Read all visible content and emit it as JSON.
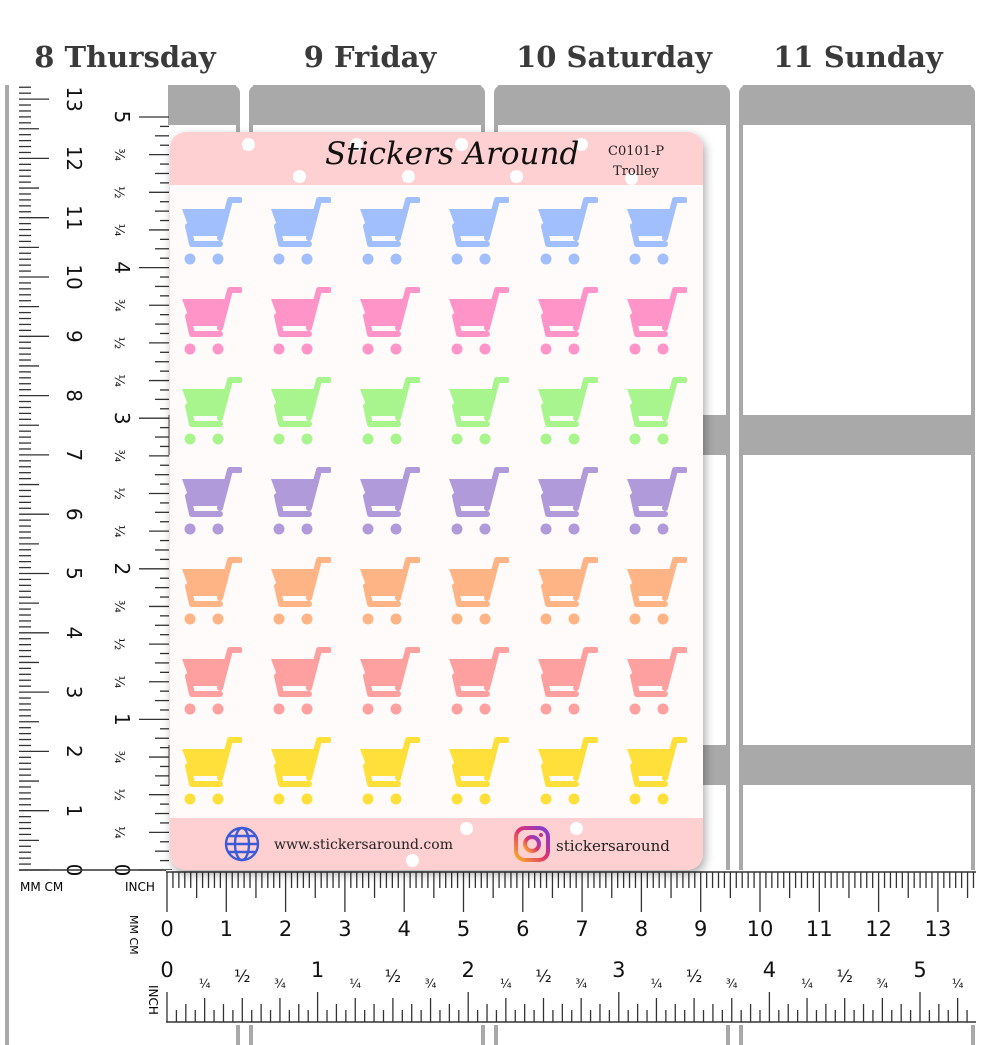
{
  "days": [
    "8 Thursday",
    "9 Friday",
    "10 Saturday",
    "11 Sunday"
  ],
  "ruler": {
    "mm_cm_label": "MM CM",
    "inch_label": "INCH",
    "cm_label": "MM CM",
    "cm_numbers": [
      "0",
      "1",
      "2",
      "3",
      "4",
      "5",
      "6",
      "7",
      "8",
      "9",
      "10",
      "11",
      "12",
      "13"
    ],
    "inch_numbers": [
      "0",
      "1",
      "2",
      "3",
      "4",
      "5"
    ],
    "inch_fractions": [
      "¼",
      "½",
      "¾"
    ]
  },
  "sheet": {
    "title": "Stickers Around",
    "code": "C0101-P",
    "name": "Trolley",
    "website": "www.stickersaround.com",
    "instagram": "stickersaround",
    "icons": {
      "globe": "globe-icon",
      "instagram": "instagram-icon",
      "sticker": "shopping-cart-icon"
    },
    "columns": 6,
    "row_colors": [
      "#a0bffc",
      "#ff94c8",
      "#a8f58e",
      "#b09ad9",
      "#ffb485",
      "#ffa0a0",
      "#ffe03a"
    ],
    "header_color": "#ffd0d2"
  }
}
